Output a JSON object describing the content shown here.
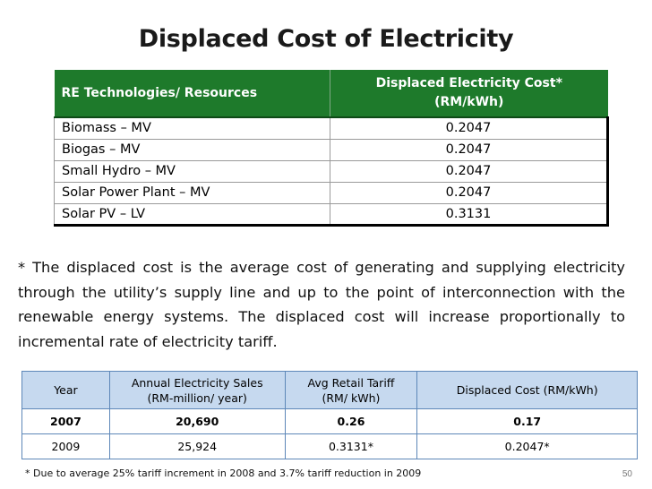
{
  "title": "Displaced Cost of Electricity",
  "table1": {
    "headers": [
      "RE Technologies/ Resources",
      "Displaced Electricity Cost*",
      "(RM/kWh)"
    ],
    "rows": [
      [
        "Biomass – MV",
        "0.2047"
      ],
      [
        "Biogas – MV",
        "0.2047"
      ],
      [
        "Small Hydro – MV",
        "0.2047"
      ],
      [
        "Solar Power Plant – MV",
        "0.2047"
      ],
      [
        "Solar PV – LV",
        "0.3131"
      ]
    ],
    "header_color": "#1e7a2b"
  },
  "note": "* The displaced cost is the average cost of generating and supplying electricity through the utility’s supply line and up to the point of interconnection with the renewable energy systems. The displaced cost will increase proportionally to incremental rate of electricity tariff.",
  "table2": {
    "headers": [
      [
        "Year"
      ],
      [
        "Annual Electricity Sales",
        "(RM-million/ year)"
      ],
      [
        "Avg Retail Tariff",
        "(RM/ kWh)"
      ],
      [
        "Displaced Cost (RM/kWh)"
      ]
    ],
    "rows": [
      [
        "2007",
        "20,690",
        "0.26",
        "0.17"
      ],
      [
        "2009",
        "25,924",
        "0.3131*",
        "0.2047*"
      ]
    ],
    "header_color": "#c6d9ef"
  },
  "footnote": "*  Due to average 25% tariff increment in 2008 and 3.7%  tariff reduction in 2009",
  "page_number": "50"
}
